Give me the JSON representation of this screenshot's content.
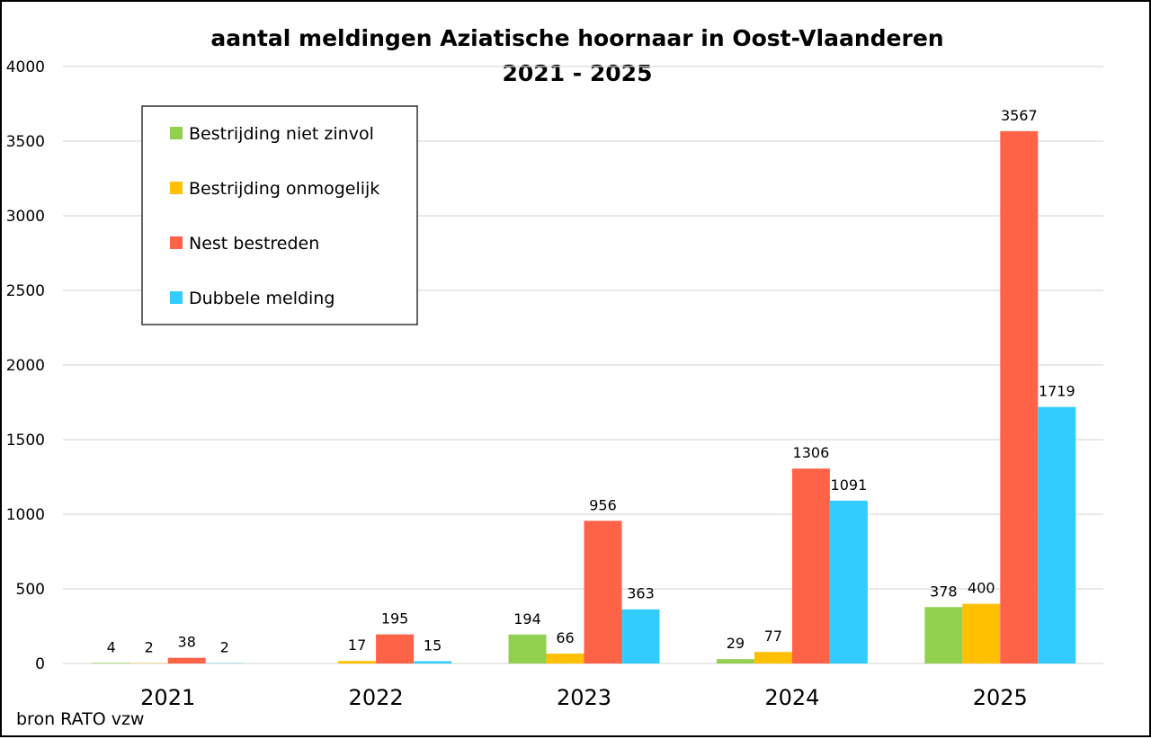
{
  "chart_data": {
    "type": "bar",
    "title": "aantal meldingen Aziatische hoornaar in Oost-Vlaanderen",
    "subtitle": "2021 - 2025",
    "xlabel": "",
    "ylabel": "",
    "ylim": [
      0,
      4000
    ],
    "yticks": [
      0,
      500,
      1000,
      1500,
      2000,
      2500,
      3000,
      3500,
      4000
    ],
    "grid": true,
    "legend_position": "top-left",
    "categories": [
      "2021",
      "2022",
      "2023",
      "2024",
      "2025"
    ],
    "series": [
      {
        "name": "Bestrijding niet zinvol",
        "color": "#92d050",
        "values": [
          4,
          null,
          194,
          29,
          378
        ]
      },
      {
        "name": "Bestrijding onmogelijk",
        "color": "#ffc000",
        "values": [
          2,
          17,
          66,
          77,
          400
        ]
      },
      {
        "name": "Nest bestreden",
        "color": "#ff6347",
        "values": [
          38,
          195,
          956,
          1306,
          3567
        ]
      },
      {
        "name": "Dubbele melding",
        "color": "#33ccff",
        "values": [
          2,
          15,
          363,
          1091,
          1719
        ]
      }
    ],
    "source": "bron RATO vzw"
  }
}
